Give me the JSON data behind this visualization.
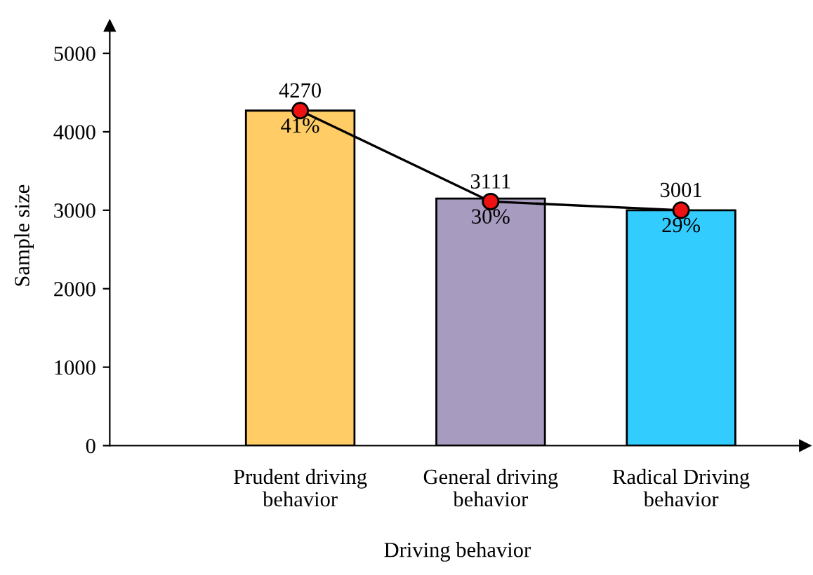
{
  "chart_data": {
    "type": "bar",
    "xlabel": "Driving behavior",
    "ylabel": "Sample size",
    "categories": [
      "Prudent driving\nbehavior",
      "General driving\nbehavior",
      "Radical Driving\nbehavior"
    ],
    "ylim": [
      0,
      5350
    ],
    "annotations": [
      {
        "text": "41%",
        "x": "Prudent driving\nbehavior",
        "y": 4270
      },
      {
        "text": "30%",
        "x": "General driving\nbehavior",
        "y": 3111
      },
      {
        "text": "29%",
        "x": "Radical Driving\nbehavior",
        "y": 3001
      }
    ],
    "yticks": [
      0,
      1000,
      2000,
      3000,
      4000,
      5000
    ],
    "grid": false,
    "legend": false,
    "series": [
      {
        "colors": [
          "#ffcc66",
          "#a89bc0",
          "#33ccff"
        ],
        "values": [
          4270,
          3150,
          3000
        ]
      },
      {
        "type": "line",
        "color": "#000000",
        "marker": "circle",
        "values": [
          4270,
          3111,
          3001
        ],
        "value_labels": [
          "4270",
          "3111",
          "3001"
        ]
      }
    ]
  }
}
